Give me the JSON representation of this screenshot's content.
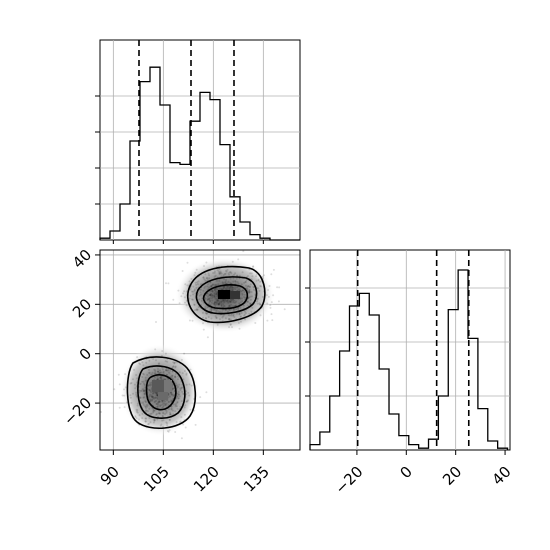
{
  "chart_data": {
    "type": "corner",
    "grid": true,
    "panels": {
      "x_marginal": {
        "type": "histogram",
        "xlim": [
          86,
          146
        ],
        "bins": [
          86,
          89,
          92,
          95,
          98,
          101,
          104,
          107,
          110,
          113,
          116,
          119,
          122,
          125,
          128,
          131,
          134,
          137,
          140,
          143,
          146
        ],
        "counts": [
          0.01,
          0.05,
          0.2,
          0.55,
          0.88,
          0.96,
          0.75,
          0.43,
          0.42,
          0.66,
          0.82,
          0.78,
          0.53,
          0.24,
          0.1,
          0.03,
          0.01,
          0,
          0,
          0
        ],
        "quantile_lines": [
          97.7,
          113.3,
          126.2
        ]
      },
      "joint": {
        "type": "2d-histogram-contour",
        "xlim": [
          86,
          146
        ],
        "ylim": [
          -39,
          42
        ],
        "x_ticks": [
          "90",
          "105",
          "120",
          "135"
        ],
        "y_ticks": [
          "−20",
          "0",
          "20",
          "40"
        ],
        "x_tick_values": [
          90,
          105,
          120,
          135
        ],
        "y_tick_values": [
          -20,
          0,
          20,
          40
        ],
        "clusters": [
          {
            "center_x": 102,
            "center_y": -15
          },
          {
            "center_x": 124,
            "center_y": 24
          }
        ]
      },
      "y_marginal": {
        "type": "histogram",
        "xlim": [
          -39,
          42
        ],
        "bins": [
          -39,
          -35,
          -31,
          -27,
          -23,
          -19,
          -15,
          -11,
          -7,
          -3,
          1,
          5,
          9,
          13,
          17,
          21,
          25,
          29,
          33,
          37,
          41
        ],
        "counts": [
          0.03,
          0.1,
          0.3,
          0.55,
          0.8,
          0.87,
          0.75,
          0.45,
          0.2,
          0.08,
          0.03,
          0.01,
          0.06,
          0.3,
          0.78,
          1.0,
          0.62,
          0.23,
          0.05,
          0.01
        ],
        "quantile_lines": [
          -19.7,
          12.3,
          25.3
        ],
        "x_ticks": [
          "−20",
          "0",
          "20",
          "40"
        ],
        "x_tick_values": [
          -20,
          0,
          20,
          40
        ]
      }
    }
  }
}
